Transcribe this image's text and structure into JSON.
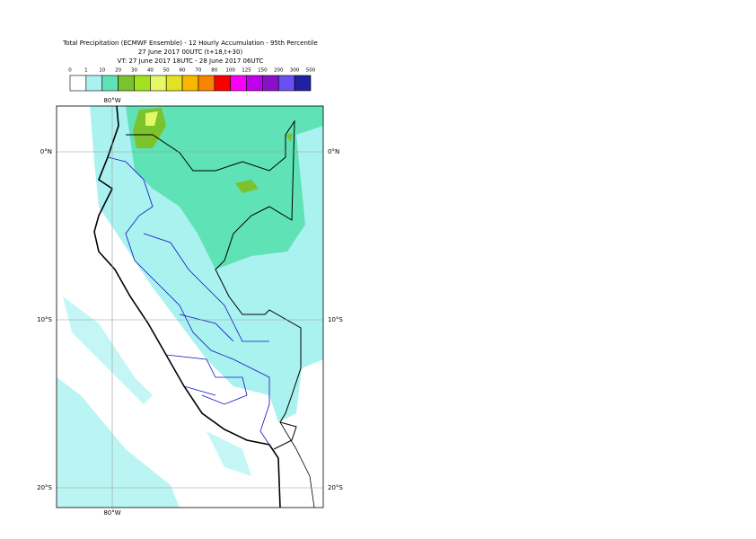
{
  "header": {
    "lines": [
      "Total Precipitation (ECMWF Ensemble) - 12 Hourly Accumulation - 95th Percentile",
      "27 June 2017 00UTC (t+18,t+30)",
      "VT: 27 June 2017 18UTC - 28 June 2017 06UTC"
    ]
  },
  "legend": {
    "levels": [
      0,
      1,
      10,
      20,
      30,
      40,
      50,
      60,
      70,
      80,
      100,
      125,
      150,
      200,
      300,
      500
    ],
    "colors": [
      "#ffffff",
      "#aaf2f0",
      "#5fe2b6",
      "#7cc22c",
      "#a2e21e",
      "#e4f868",
      "#e2e224",
      "#f8b800",
      "#f88400",
      "#f80000",
      "#f800f8",
      "#c000ec",
      "#8a10c8",
      "#6a50f0",
      "#2020a0",
      "#10104a"
    ]
  },
  "map": {
    "top_lon": "80°W",
    "bottom_lon": "80°W",
    "lat_labels": [
      "0°N",
      "10°S",
      "20°S"
    ]
  }
}
